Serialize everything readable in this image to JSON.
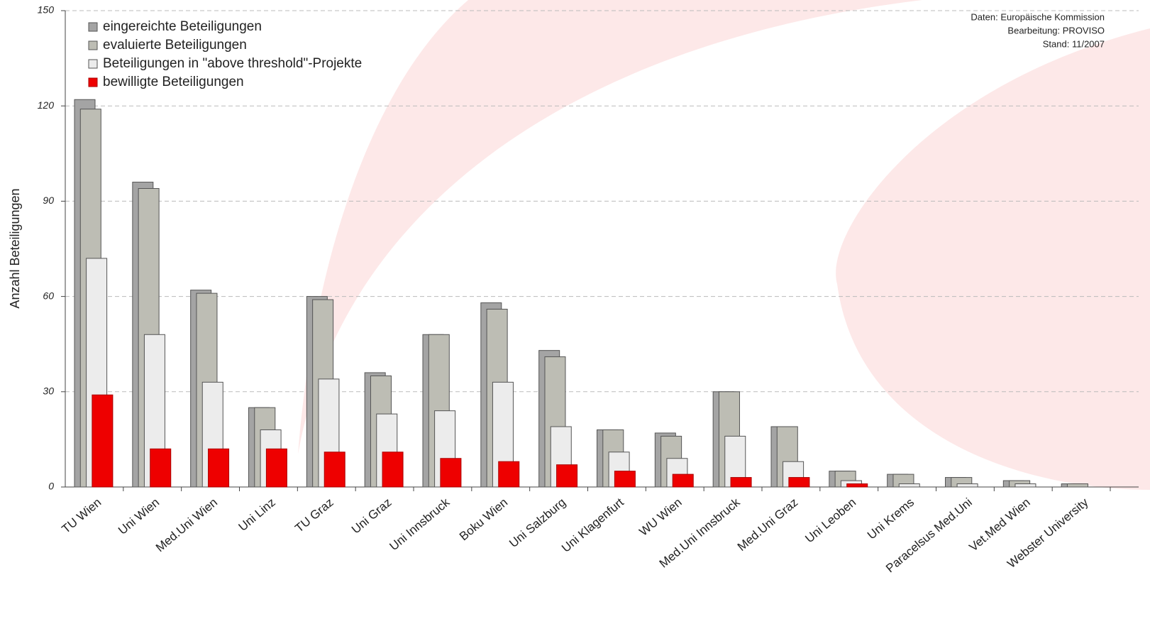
{
  "chart_data": {
    "type": "bar",
    "y_label": "Anzahl Beteiligungen",
    "annotations": [
      "Daten: Europäische Kommission",
      "Bearbeitung: PROVISO",
      "Stand: 11/2007"
    ],
    "categories": [
      "TU Wien",
      "Uni Wien",
      "Med.Uni Wien",
      "Uni Linz",
      "TU Graz",
      "Uni Graz",
      "Uni Innsbruck",
      "Boku Wien",
      "Uni Salzburg",
      "Uni Klagenfurt",
      "WU Wien",
      "Med.Uni Innsbruck",
      "Med.Uni Graz",
      "Uni Leoben",
      "Uni Krems",
      "Paracelsus Med.Uni",
      "Vet.Med Wien",
      "Webster University"
    ],
    "series": [
      {
        "name": "eingereichte Beteiligungen",
        "color": "#a4a4a4",
        "values": [
          122,
          96,
          62,
          25,
          60,
          36,
          48,
          58,
          43,
          18,
          17,
          30,
          19,
          5,
          4,
          3,
          2,
          1
        ]
      },
      {
        "name": "evaluierte Beteiligungen",
        "color": "#bdbdb4",
        "values": [
          119,
          94,
          61,
          25,
          59,
          35,
          48,
          56,
          41,
          18,
          16,
          30,
          19,
          5,
          4,
          3,
          2,
          1
        ]
      },
      {
        "name": "Beteiligungen in \"above threshold\"-Projekte",
        "color": "#ececec",
        "values": [
          72,
          48,
          33,
          18,
          34,
          23,
          24,
          33,
          19,
          11,
          9,
          16,
          8,
          2,
          1,
          1,
          1,
          0
        ]
      },
      {
        "name": "bewilligte Beteiligungen",
        "color": "#ee0000",
        "values": [
          29,
          12,
          12,
          12,
          11,
          11,
          9,
          8,
          7,
          5,
          4,
          3,
          3,
          1,
          0,
          0,
          0,
          0
        ]
      }
    ],
    "ylim": [
      0,
      150
    ],
    "yticks": [
      0,
      30,
      60,
      90,
      120,
      150
    ],
    "grid": true
  }
}
